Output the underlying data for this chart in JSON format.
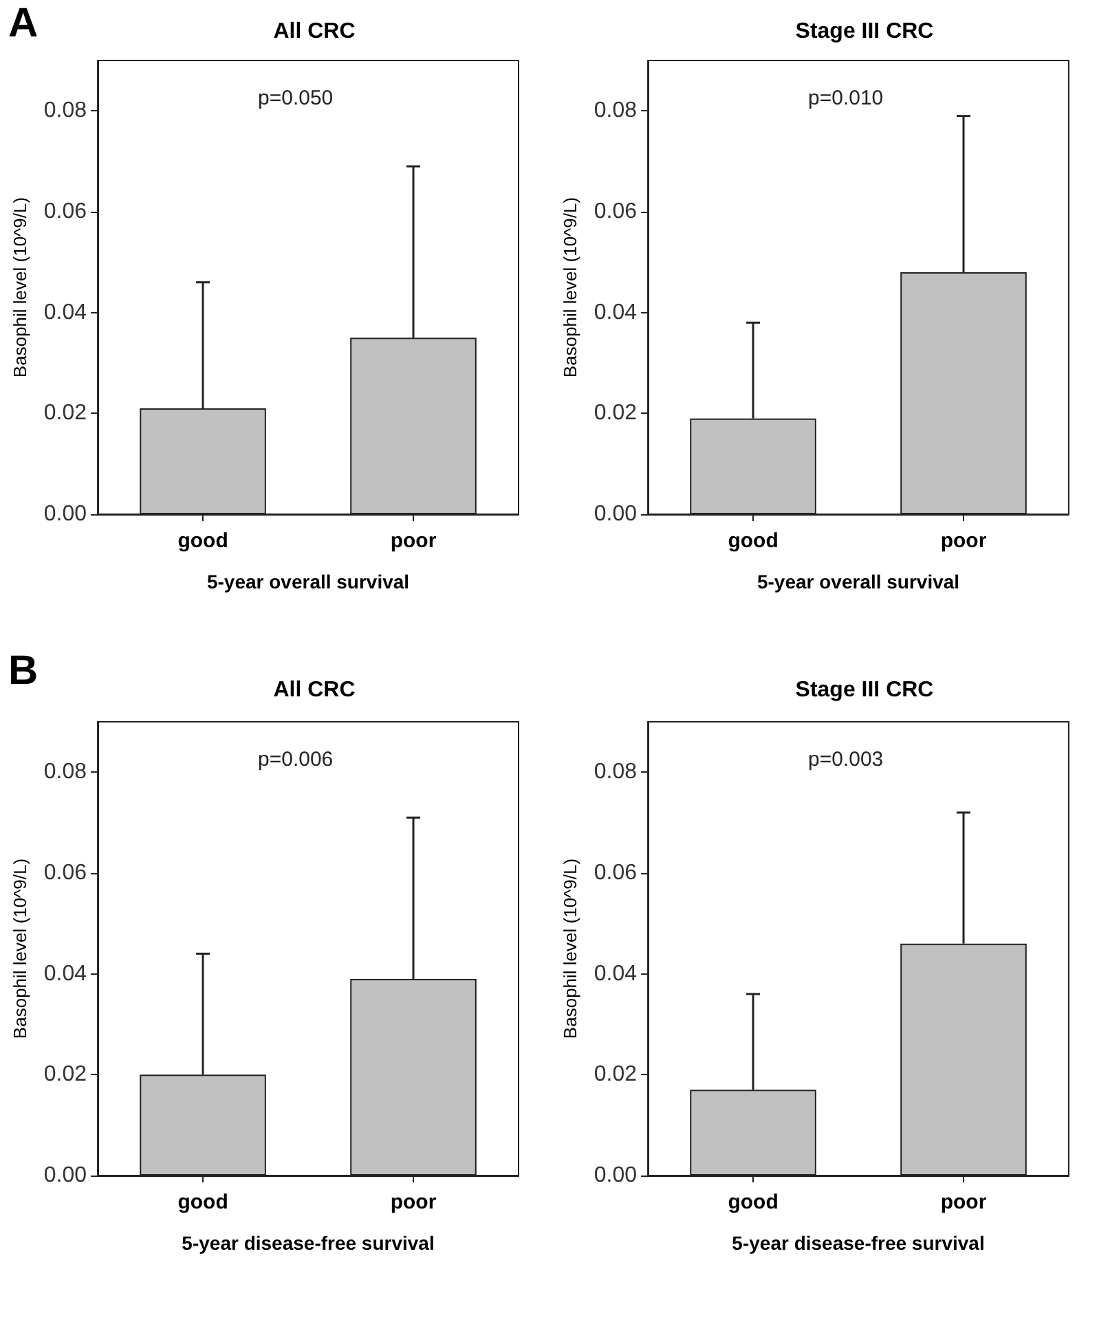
{
  "chart_data": [
    {
      "type": "bar",
      "title": "All CRC",
      "xlabel": "5-year overall survival",
      "ylabel": "Basophil level (10^9/L)",
      "annotations": [
        "A",
        "p=0.050"
      ],
      "categories": [
        "good",
        "poor"
      ],
      "series": [
        {
          "color": "#c0c0c0",
          "values": [
            0.021,
            0.035
          ],
          "errors": [
            [
              0.021,
              0.046
            ],
            [
              0.035,
              0.069
            ]
          ]
        }
      ],
      "ylim": [
        0,
        0.09
      ],
      "yticks": [
        {
          "value": 0,
          "label": "0.00"
        },
        {
          "value": 0.02,
          "label": "0.02"
        },
        {
          "value": 0.04,
          "label": "0.04"
        },
        {
          "value": 0.06,
          "label": "0.06"
        },
        {
          "value": 0.08,
          "label": "0.08"
        }
      ],
      "grid": false
    },
    {
      "type": "bar",
      "title": "Stage III CRC",
      "xlabel": "5-year overall survival",
      "ylabel": "Basophil level (10^9/L)",
      "annotations": [
        "p=0.010"
      ],
      "categories": [
        "good",
        "poor"
      ],
      "series": [
        {
          "color": "#c0c0c0",
          "values": [
            0.019,
            0.048
          ],
          "errors": [
            [
              0.019,
              0.038
            ],
            [
              0.048,
              0.079
            ]
          ]
        }
      ],
      "ylim": [
        0,
        0.09
      ],
      "yticks": [
        {
          "value": 0,
          "label": "0.00"
        },
        {
          "value": 0.02,
          "label": "0.02"
        },
        {
          "value": 0.04,
          "label": "0.04"
        },
        {
          "value": 0.06,
          "label": "0.06"
        },
        {
          "value": 0.08,
          "label": "0.08"
        }
      ],
      "grid": false
    },
    {
      "type": "bar",
      "title": "All CRC",
      "xlabel": "5-year disease-free survival",
      "ylabel": "Basophil level (10^9/L)",
      "annotations": [
        "B",
        "p=0.006"
      ],
      "categories": [
        "good",
        "poor"
      ],
      "series": [
        {
          "color": "#c0c0c0",
          "values": [
            0.02,
            0.039
          ],
          "errors": [
            [
              0.02,
              0.044
            ],
            [
              0.039,
              0.071
            ]
          ]
        }
      ],
      "ylim": [
        0,
        0.09
      ],
      "yticks": [
        {
          "value": 0,
          "label": "0.00"
        },
        {
          "value": 0.02,
          "label": "0.02"
        },
        {
          "value": 0.04,
          "label": "0.04"
        },
        {
          "value": 0.06,
          "label": "0.06"
        },
        {
          "value": 0.08,
          "label": "0.08"
        }
      ],
      "grid": false
    },
    {
      "type": "bar",
      "title": "Stage III CRC",
      "xlabel": "5-year disease-free survival",
      "ylabel": "Basophil level (10^9/L)",
      "annotations": [
        "p=0.003"
      ],
      "categories": [
        "good",
        "poor"
      ],
      "series": [
        {
          "color": "#c0c0c0",
          "values": [
            0.017,
            0.046
          ],
          "errors": [
            [
              0.017,
              0.036
            ],
            [
              0.046,
              0.072
            ]
          ]
        }
      ],
      "ylim": [
        0,
        0.09
      ],
      "yticks": [
        {
          "value": 0,
          "label": "0.00"
        },
        {
          "value": 0.02,
          "label": "0.02"
        },
        {
          "value": 0.04,
          "label": "0.04"
        },
        {
          "value": 0.06,
          "label": "0.06"
        },
        {
          "value": 0.08,
          "label": "0.08"
        }
      ],
      "grid": false
    }
  ]
}
